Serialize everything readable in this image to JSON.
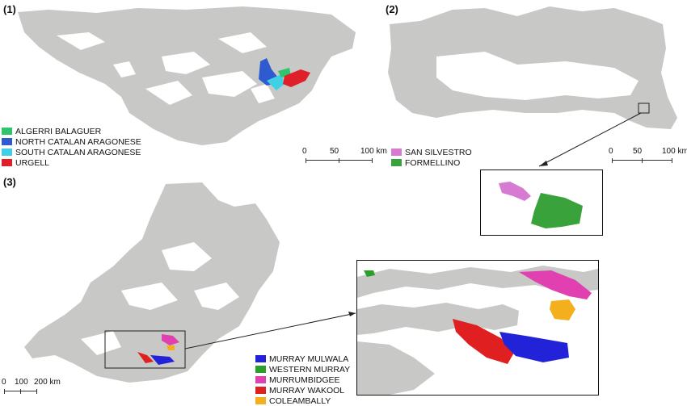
{
  "colors": {
    "land": "#c8c8c6",
    "background": "#ffffff"
  },
  "panel1": {
    "label": "(1)",
    "legend": [
      {
        "name": "ALGERRI BALAGUER",
        "color": "#2fc46e"
      },
      {
        "name": "NORTH CATALAN ARAGONESE",
        "color": "#2f5bd0"
      },
      {
        "name": "SOUTH CATALAN ARAGONESE",
        "color": "#3fd0e6"
      },
      {
        "name": "URGELL",
        "color": "#e02028"
      }
    ],
    "scale": {
      "ticks": [
        "0",
        "50",
        "100 km"
      ]
    }
  },
  "panel2": {
    "label": "(2)",
    "legend": [
      {
        "name": "SAN SILVESTRO",
        "color": "#d77ad2"
      },
      {
        "name": "FORMELLINO",
        "color": "#3aa23a"
      }
    ],
    "scale": {
      "ticks": [
        "0",
        "50",
        "100 km"
      ]
    }
  },
  "panel3": {
    "label": "(3)",
    "legend": [
      {
        "name": "MURRAY MULWALA",
        "color": "#2222d8"
      },
      {
        "name": "WESTERN MURRAY",
        "color": "#2aa02a"
      },
      {
        "name": "MURRUMBIDGEE",
        "color": "#e040b0"
      },
      {
        "name": "MURRAY WAKOOL",
        "color": "#e02020"
      },
      {
        "name": "COLEAMBALLY",
        "color": "#f3b01c"
      }
    ],
    "scale": {
      "ticks": [
        "0",
        "100",
        "200 km"
      ]
    }
  }
}
